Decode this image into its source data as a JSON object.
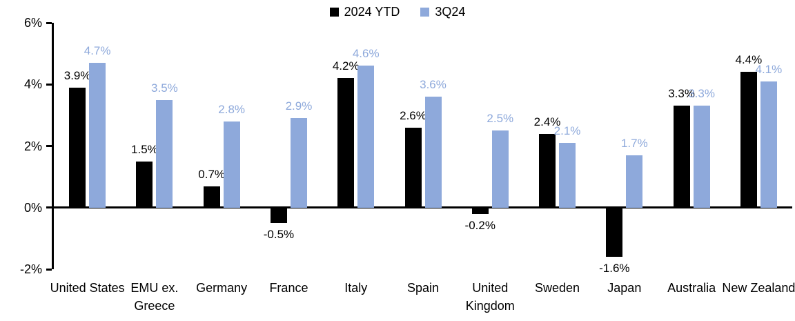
{
  "chart_data": {
    "type": "bar",
    "title": "",
    "xlabel": "",
    "ylabel": "",
    "categories": [
      "United States",
      "EMU ex. Greece",
      "Germany",
      "France",
      "Italy",
      "Spain",
      "United Kingdom",
      "Sweden",
      "Japan",
      "Australia",
      "New Zealand"
    ],
    "series": [
      {
        "name": "2024 YTD",
        "color": "#000000",
        "values": [
          3.9,
          1.5,
          0.7,
          -0.5,
          4.2,
          2.6,
          -0.2,
          2.4,
          -1.6,
          3.3,
          4.4
        ]
      },
      {
        "name": "3Q24",
        "color": "#8EA9DB",
        "values": [
          4.7,
          3.5,
          2.8,
          2.9,
          4.6,
          3.6,
          2.5,
          2.1,
          1.7,
          3.3,
          4.1
        ]
      }
    ],
    "data_labels": {
      "2024 YTD": [
        "3.9%",
        "1.5%",
        "0.7%",
        "-0.5%",
        "4.2%",
        "2.6%",
        "-0.2%",
        "2.4%",
        "-1.6%",
        "3.3%",
        "4.4%"
      ],
      "3Q24": [
        "4.7%",
        "3.5%",
        "2.8%",
        "2.9%",
        "4.6%",
        "3.6%",
        "2.5%",
        "2.1%",
        "1.7%",
        "3.3%",
        "4.1%"
      ]
    },
    "y_ticks": [
      {
        "label": "6%",
        "value": 6
      },
      {
        "label": "4%",
        "value": 4
      },
      {
        "label": "2%",
        "value": 2
      },
      {
        "label": "0%",
        "value": 0
      },
      {
        "label": "-2%",
        "value": -2
      }
    ],
    "ylim": [
      -2,
      6
    ],
    "value_suffix": "%",
    "legend_position": "top-center",
    "grid": false,
    "axis_color": "#000000",
    "background_color": "#ffffff"
  }
}
